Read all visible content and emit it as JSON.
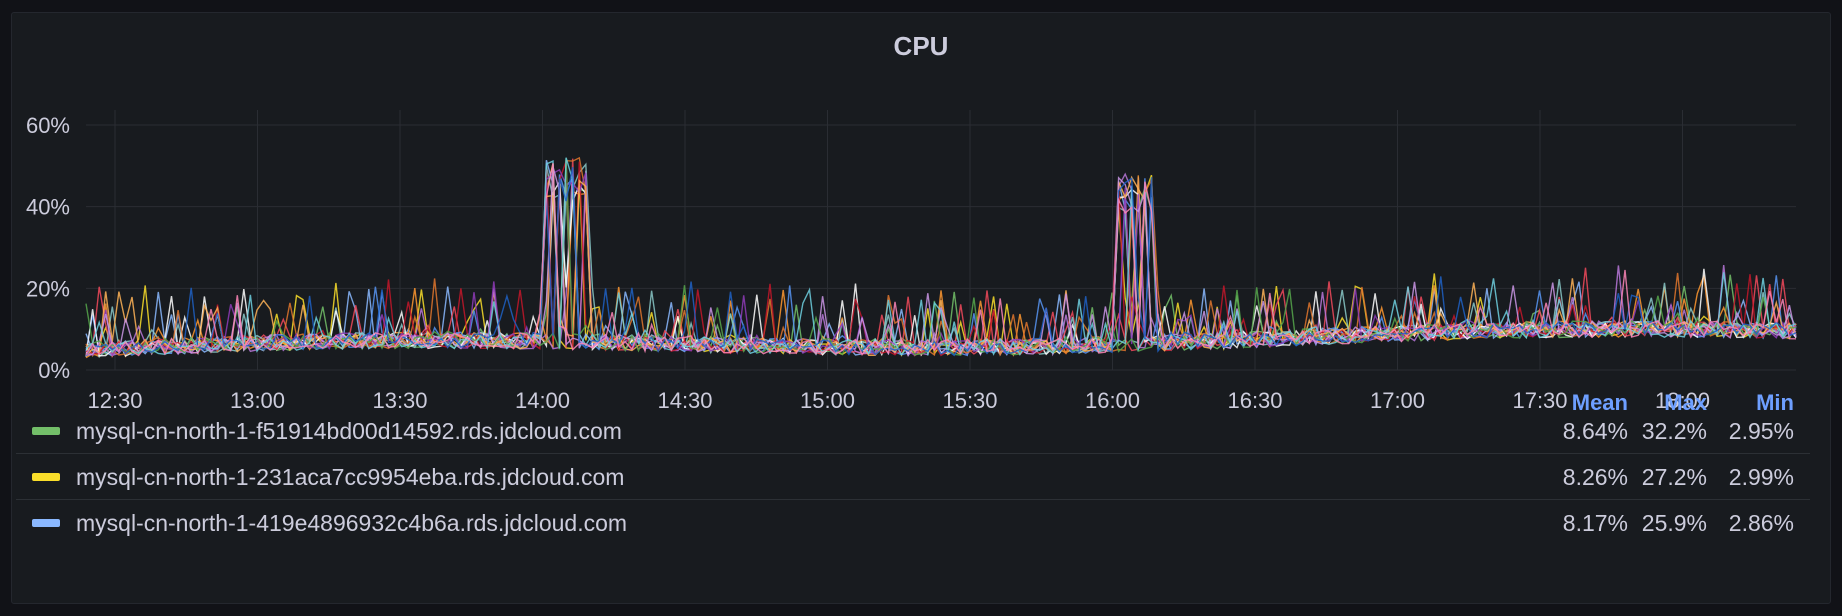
{
  "panel": {
    "title": "CPU"
  },
  "chart_data": {
    "type": "line",
    "title": "CPU",
    "x_ticks": [
      "12:30",
      "13:00",
      "13:30",
      "14:00",
      "14:30",
      "15:00",
      "15:30",
      "16:00",
      "16:30",
      "17:00",
      "17:30",
      "18:00"
    ],
    "y_ticks": [
      "0%",
      "20%",
      "40%",
      "60%"
    ],
    "ylim": [
      0,
      60
    ],
    "grid": true,
    "legend_placement": "bottom",
    "legend_columns": [
      "Mean",
      "Max",
      "Min"
    ],
    "series": [
      {
        "name": "mysql-cn-north-1-f51914bd00d14592.rds.jdcloud.com",
        "color": "#73bf69",
        "mean": "8.64%",
        "max": "32.2%",
        "min": "2.95%"
      },
      {
        "name": "mysql-cn-north-1-231aca7cc9954eba.rds.jdcloud.com",
        "color": "#fade2a",
        "mean": "8.26%",
        "max": "27.2%",
        "min": "2.99%"
      },
      {
        "name": "mysql-cn-north-1-419e4896932c4b6a.rds.jdcloud.com",
        "color": "#8ab8ff",
        "mean": "8.17%",
        "max": "25.9%",
        "min": "2.86%"
      }
    ],
    "extra_series_colors": [
      "#f2495c",
      "#ff9830",
      "#b877d9",
      "#5794f2",
      "#8ac8c8",
      "#ffffff",
      "#e0752d",
      "#c4162a",
      "#8f3bb8",
      "#ffb357",
      "#ca95e5",
      "#56a64b",
      "#6ed0e0",
      "#1f60c4",
      "#fe85b7"
    ]
  }
}
